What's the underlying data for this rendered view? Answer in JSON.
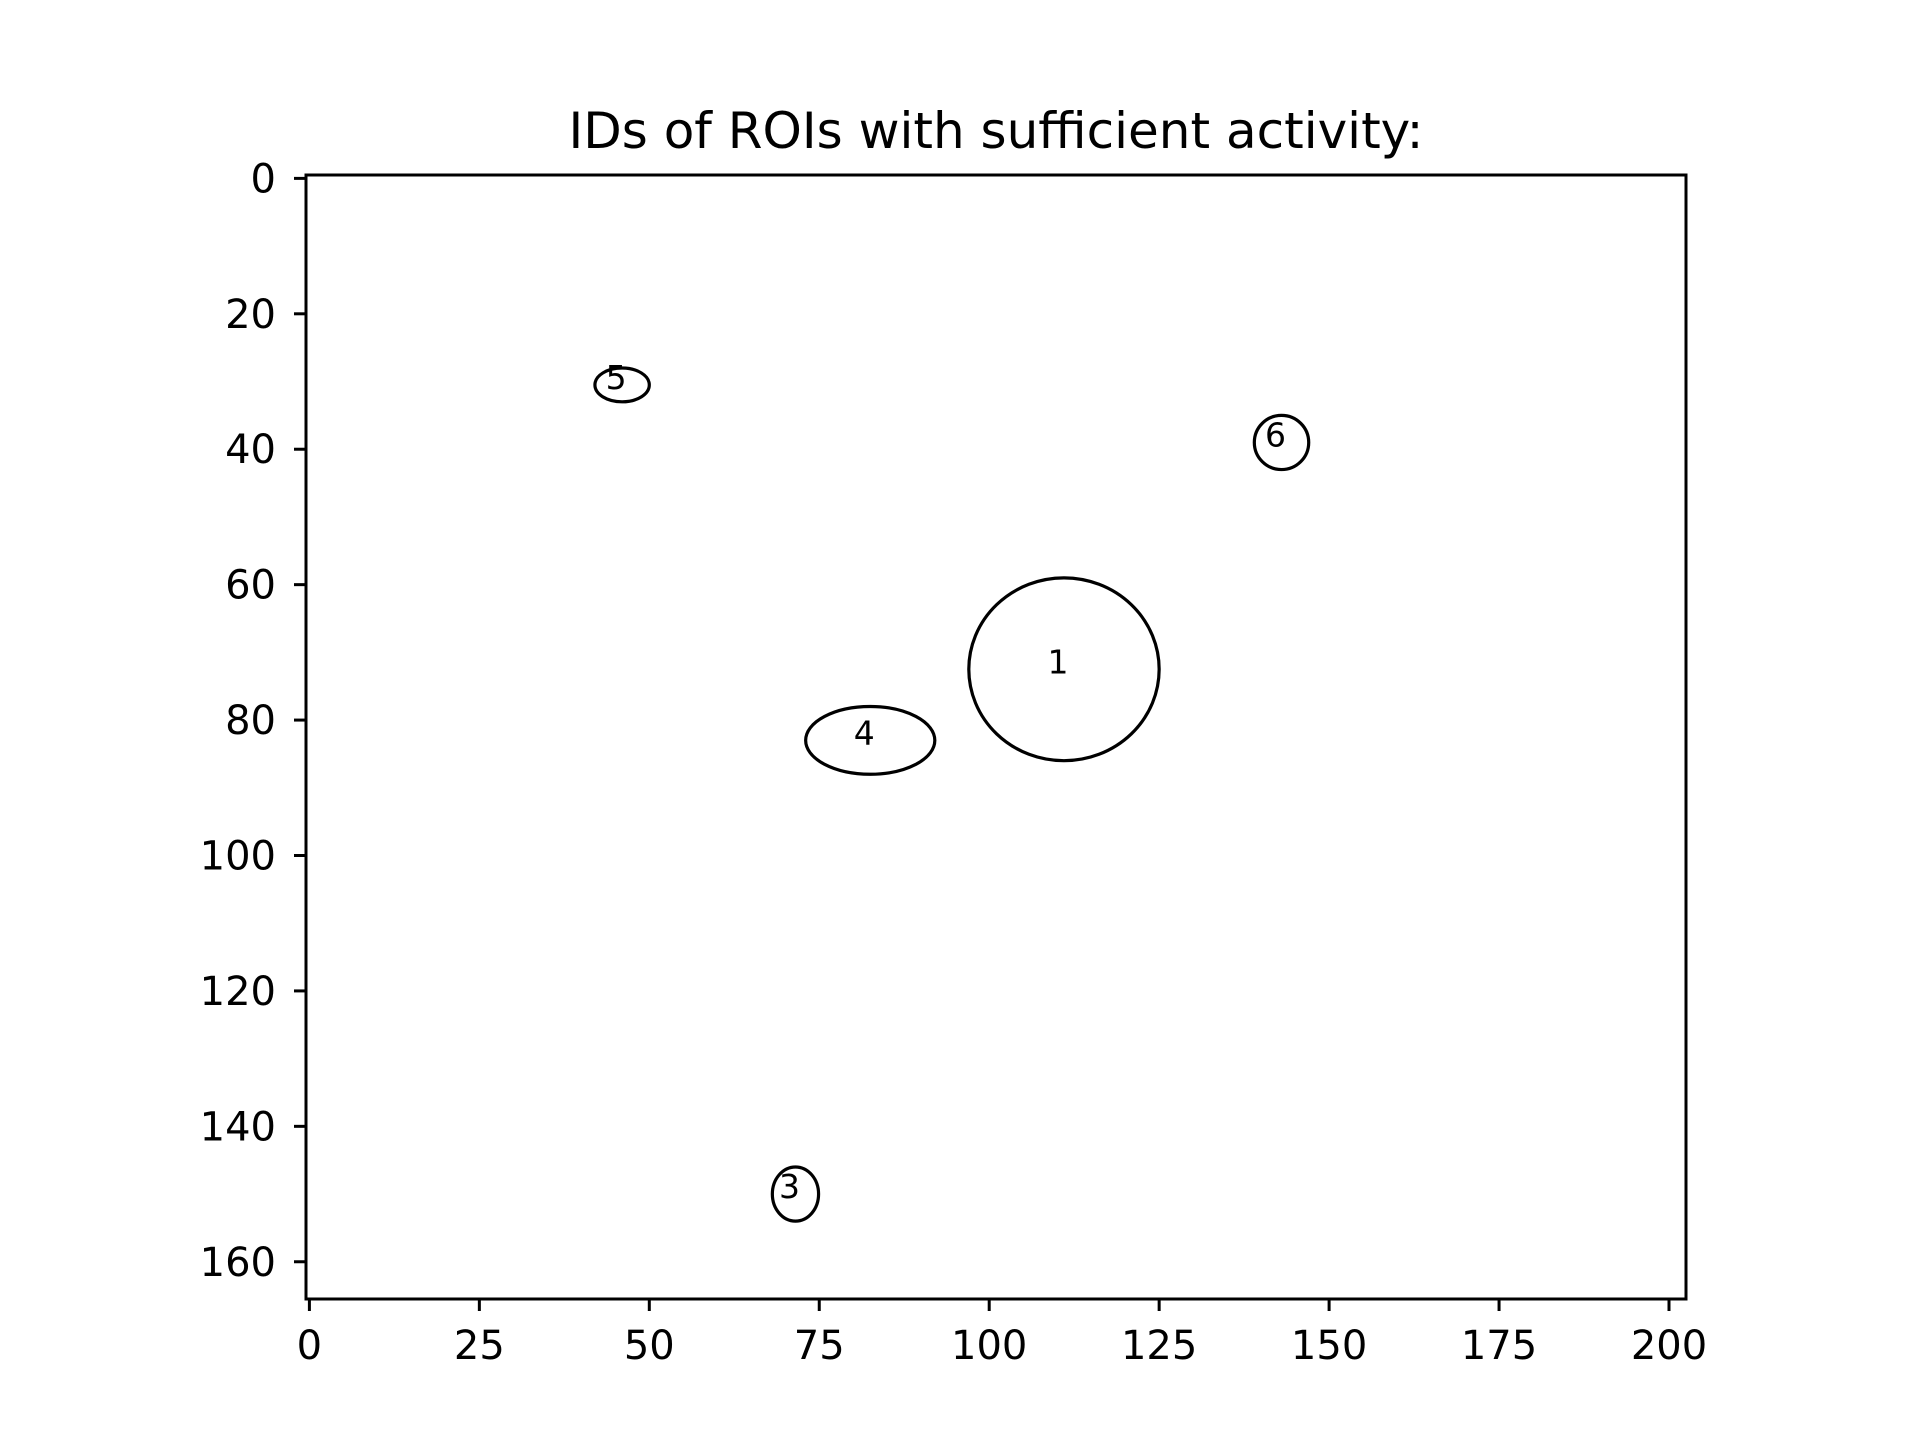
{
  "chart_data": {
    "type": "scatter",
    "title": "IDs of ROIs with sufficient activity:",
    "xlabel": "",
    "ylabel": "",
    "xlim": [
      -0.5,
      202.5
    ],
    "ylim": [
      165.5,
      -0.5
    ],
    "y_inverted": true,
    "grid": false,
    "x_ticks": [
      0,
      25,
      50,
      75,
      100,
      125,
      150,
      175,
      200
    ],
    "y_ticks": [
      0,
      20,
      40,
      60,
      80,
      100,
      120,
      140,
      160
    ],
    "rois": [
      {
        "id": "1",
        "cx": 111.0,
        "cy": 72.5,
        "rx": 14.0,
        "ry": 13.5
      },
      {
        "id": "3",
        "cx": 71.5,
        "cy": 150.0,
        "rx": 3.4,
        "ry": 4.0
      },
      {
        "id": "4",
        "cx": 82.5,
        "cy": 83.0,
        "rx": 9.5,
        "ry": 5.0
      },
      {
        "id": "5",
        "cx": 46.0,
        "cy": 30.5,
        "rx": 4.0,
        "ry": 2.5
      },
      {
        "id": "6",
        "cx": 143.0,
        "cy": 39.0,
        "rx": 4.0,
        "ry": 4.0
      }
    ],
    "colors": {
      "outline": "#000000",
      "background": "#ffffff"
    }
  }
}
